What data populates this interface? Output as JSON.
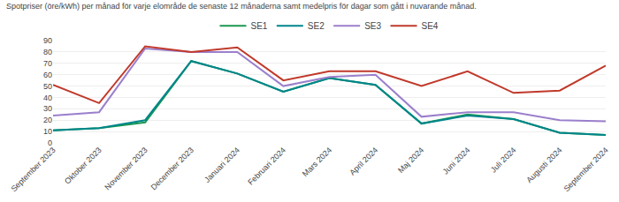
{
  "chart_data": {
    "type": "line",
    "title": "Spotpriser (öre/kWh) per månad för varje elområde de senaste 12 månaderna samt medelpris för dagar som gått i nuvarande månad.",
    "categories": [
      "September 2023",
      "Oktober 2023",
      "November 2023",
      "December 2023",
      "Januari 2024",
      "Februari 2024",
      "Mars 2024",
      "April 2024",
      "Maj 2024",
      "Juni 2024",
      "Juli 2024",
      "Augusti 2024",
      "September 2024"
    ],
    "series": [
      {
        "name": "SE1",
        "color": "#1a9850",
        "values": [
          11,
          13,
          18,
          72,
          61,
          45,
          57,
          51,
          17,
          25,
          21,
          9,
          7
        ]
      },
      {
        "name": "SE2",
        "color": "#00868b",
        "values": [
          11,
          13,
          20,
          72,
          61,
          45,
          57,
          51,
          17,
          24,
          21,
          9,
          7
        ]
      },
      {
        "name": "SE3",
        "color": "#9b7fcc",
        "values": [
          24,
          27,
          83,
          80,
          80,
          50,
          58,
          60,
          23,
          27,
          27,
          20,
          19
        ]
      },
      {
        "name": "SE4",
        "color": "#c0392b",
        "values": [
          51,
          35,
          85,
          80,
          84,
          55,
          63,
          63,
          50,
          63,
          44,
          46,
          68
        ]
      }
    ],
    "ylim": [
      0,
      90
    ],
    "yticks": [
      0,
      10,
      20,
      30,
      40,
      50,
      60,
      70,
      80,
      90
    ],
    "grid": true,
    "legend": "top"
  }
}
